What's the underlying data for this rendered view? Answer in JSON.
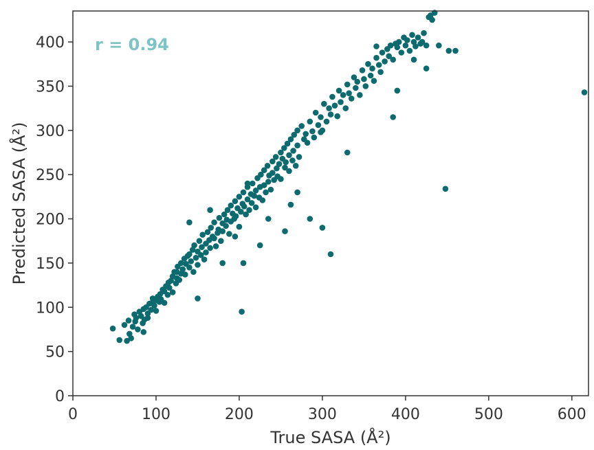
{
  "chart_data": {
    "type": "scatter",
    "title": "",
    "xlabel": "True SASA (Å²)",
    "ylabel": "Predicted SASA (Å²)",
    "xlim": [
      0,
      620
    ],
    "ylim": [
      0,
      435
    ],
    "x_ticks": [
      0,
      100,
      200,
      300,
      400,
      500,
      600
    ],
    "y_ticks": [
      0,
      50,
      100,
      150,
      200,
      250,
      300,
      350,
      400
    ],
    "grid": false,
    "legend": "none",
    "annotation": "r = 0.94",
    "annotation_color": "#7ec4c4",
    "point_color": "#0d6b6f",
    "series": [
      {
        "x": [
          48,
          56,
          62,
          65,
          67,
          68,
          70,
          72,
          74,
          75,
          76,
          78,
          80,
          82,
          84,
          85,
          86,
          88,
          90,
          92,
          94,
          95,
          96,
          98,
          100,
          100,
          102,
          104,
          105,
          106,
          108,
          110,
          110,
          112,
          114,
          115,
          116,
          118,
          120,
          120,
          122,
          124,
          125,
          126,
          128,
          130,
          130,
          132,
          134,
          135,
          136,
          138,
          140,
          140,
          142,
          144,
          145,
          146,
          148,
          150,
          150,
          152,
          154,
          155,
          156,
          158,
          160,
          160,
          162,
          164,
          165,
          166,
          168,
          170,
          170,
          172,
          174,
          175,
          176,
          178,
          180,
          180,
          182,
          184,
          185,
          186,
          188,
          190,
          190,
          192,
          194,
          195,
          196,
          198,
          200,
          200,
          202,
          204,
          205,
          206,
          208,
          210,
          210,
          212,
          214,
          215,
          216,
          218,
          220,
          220,
          222,
          224,
          225,
          226,
          228,
          230,
          230,
          232,
          234,
          235,
          236,
          238,
          240,
          240,
          242,
          244,
          245,
          246,
          248,
          250,
          250,
          252,
          254,
          255,
          256,
          258,
          260,
          260,
          262,
          264,
          265,
          266,
          268,
          270,
          270,
          272,
          275,
          278,
          280,
          282,
          285,
          288,
          290,
          292,
          295,
          298,
          300,
          302,
          305,
          308,
          310,
          312,
          315,
          318,
          320,
          322,
          325,
          328,
          330,
          332,
          335,
          338,
          340,
          342,
          345,
          348,
          350,
          352,
          355,
          358,
          360,
          362,
          365,
          368,
          370,
          372,
          375,
          378,
          380,
          382,
          385,
          388,
          390,
          392,
          395,
          398,
          400,
          402,
          405,
          408,
          410,
          412,
          415,
          418,
          420,
          422,
          425,
          428,
          430,
          432,
          435,
          440,
          452,
          448,
          615,
          203,
          298,
          262,
          205,
          90,
          85,
          125,
          140,
          150,
          165,
          180,
          195,
          210,
          225,
          235,
          255,
          270,
          285,
          310,
          330,
          365,
          385,
          410,
          425,
          300,
          390,
          460
        ],
        "y": [
          76,
          63,
          80,
          62,
          85,
          70,
          65,
          78,
          92,
          84,
          88,
          75,
          95,
          90,
          82,
          98,
          86,
          100,
          93,
          104,
          97,
          105,
          110,
          102,
          108,
          96,
          112,
          106,
          115,
          109,
          120,
          118,
          105,
          124,
          114,
          128,
          122,
          130,
          135,
          117,
          140,
          127,
          133,
          146,
          131,
          150,
          138,
          143,
          155,
          137,
          149,
          158,
          145,
          160,
          152,
          165,
          140,
          170,
          156,
          163,
          148,
          175,
          159,
          168,
          182,
          154,
          172,
          162,
          185,
          176,
          167,
          190,
          180,
          178,
          196,
          169,
          184,
          188,
          201,
          175,
          195,
          186,
          205,
          192,
          199,
          210,
          183,
          197,
          215,
          206,
          200,
          220,
          203,
          212,
          225,
          191,
          208,
          217,
          230,
          214,
          205,
          222,
          236,
          210,
          228,
          218,
          240,
          226,
          232,
          213,
          246,
          224,
          236,
          250,
          221,
          255,
          238,
          230,
          260,
          242,
          249,
          233,
          265,
          252,
          244,
          270,
          257,
          248,
          262,
          275,
          245,
          268,
          280,
          258,
          264,
          285,
          254,
          272,
          290,
          266,
          277,
          295,
          260,
          283,
          300,
          270,
          305,
          290,
          296,
          286,
          310,
          299,
          292,
          320,
          306,
          315,
          300,
          330,
          310,
          325,
          318,
          338,
          328,
          316,
          345,
          332,
          340,
          325,
          352,
          342,
          336,
          360,
          348,
          355,
          340,
          368,
          358,
          350,
          375,
          362,
          370,
          356,
          382,
          374,
          366,
          388,
          378,
          392,
          384,
          396,
          380,
          398,
          394,
          400,
          388,
          405,
          396,
          402,
          390,
          408,
          400,
          395,
          405,
          398,
          400,
          410,
          396,
          428,
          430,
          425,
          433,
          396,
          390,
          234,
          343,
          95,
          298,
          216,
          150,
          88,
          72,
          140,
          196,
          110,
          210,
          150,
          180,
          240,
          170,
          200,
          186,
          230,
          200,
          160,
          275,
          395,
          315,
          380,
          370,
          190,
          345,
          390
        ]
      }
    ]
  }
}
